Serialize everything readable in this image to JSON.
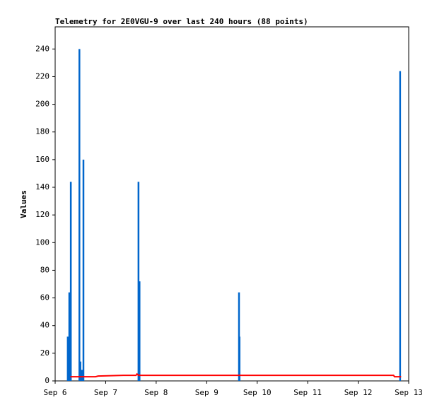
{
  "chart_data": {
    "type": "line",
    "title": "Telemetry for 2E0VGU-9 over last 240 hours (88 points)",
    "y_label": "Values",
    "xlim": [
      0,
      7
    ],
    "ylim": [
      0,
      256
    ],
    "xticks": [
      {
        "value": 0,
        "label": "Sep 6"
      },
      {
        "value": 1,
        "label": "Sep 7"
      },
      {
        "value": 2,
        "label": "Sep 8"
      },
      {
        "value": 3,
        "label": "Sep 9"
      },
      {
        "value": 4,
        "label": "Sep 10"
      },
      {
        "value": 5,
        "label": "Sep 11"
      },
      {
        "value": 6,
        "label": "Sep 12"
      },
      {
        "value": 7,
        "label": "Sep 13"
      }
    ],
    "yticks": [
      0,
      20,
      40,
      60,
      80,
      100,
      120,
      140,
      160,
      180,
      200,
      220,
      240
    ],
    "series": [
      {
        "style": "impulses",
        "color": "#0066cc",
        "x": [
          0.25,
          0.28,
          0.31,
          0.48,
          0.5,
          0.53,
          0.56,
          1.65,
          1.67,
          3.64,
          3.65,
          6.83
        ],
        "values": [
          32,
          64,
          144,
          240,
          14,
          8,
          160,
          144,
          72,
          64,
          32,
          224
        ]
      },
      {
        "style": "lines",
        "color": "#ff0000",
        "x": [
          0.3,
          0.8,
          0.85,
          1.35,
          1.6,
          1.62,
          1.65,
          6.7,
          6.72,
          6.85
        ],
        "values": [
          3,
          3,
          3.5,
          4,
          4,
          5,
          4,
          4,
          3,
          3
        ]
      }
    ]
  }
}
